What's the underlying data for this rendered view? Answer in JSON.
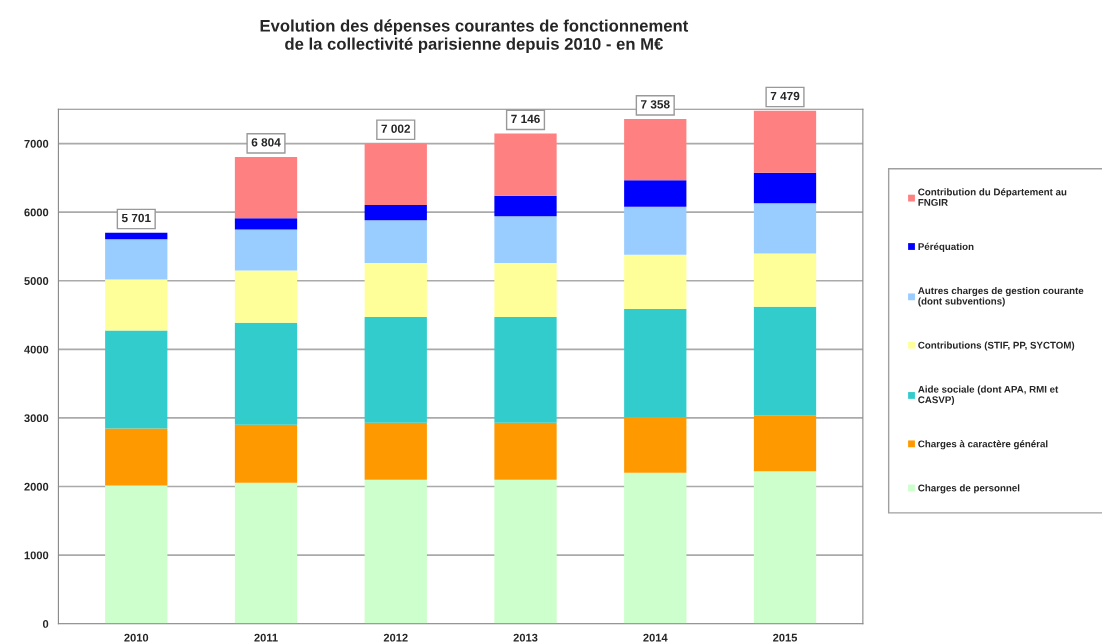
{
  "chart_data": {
    "type": "bar",
    "title": "Evolution des dépenses courantes de fonctionnement\nde la collectivité parisienne depuis 2010 - en M€",
    "categories": [
      "2010",
      "2011",
      "2012",
      "2013",
      "2014",
      "2015"
    ],
    "stacked": true,
    "series": [
      {
        "name": "Charges de personnel",
        "color": "#ccffcc",
        "values": [
          2014,
          2056,
          2098,
          2098,
          2202,
          2223
        ]
      },
      {
        "name": "Charges à caractère général",
        "color": "#ff9900",
        "values": [
          833,
          844,
          833,
          833,
          813,
          818
        ]
      },
      {
        "name": "Aide sociale (dont APA, RMI et CASVP)",
        "color": "#33cccc",
        "values": [
          1427,
          1489,
          1542,
          1542,
          1573,
          1579
        ]
      },
      {
        "name": "Contributions (STIF, PP, SYCTOM)",
        "color": "#ffff99",
        "values": [
          744,
          760,
          787,
          787,
          792,
          776
        ]
      },
      {
        "name": "Autres charges de gestion courante (dont subventions)",
        "color": "#99ccff",
        "values": [
          588,
          598,
          624,
          681,
          698,
          734
        ]
      },
      {
        "name": "Péréquation",
        "color": "#0000ff",
        "values": [
          95,
          163,
          220,
          299,
          388,
          446
        ]
      },
      {
        "name": "Contribution du Département au FNGIR",
        "color": "#ff8080",
        "values": [
          null,
          894,
          898,
          906,
          892,
          903
        ]
      }
    ],
    "totals": [
      "5 701",
      "6 804",
      "7 002",
      "7 146",
      "7 358",
      "7 479"
    ],
    "ylim": [
      0,
      7500
    ],
    "yticks": [
      0,
      1000,
      2000,
      3000,
      4000,
      5000,
      6000,
      7000
    ],
    "grid": "y",
    "legend": "right"
  }
}
